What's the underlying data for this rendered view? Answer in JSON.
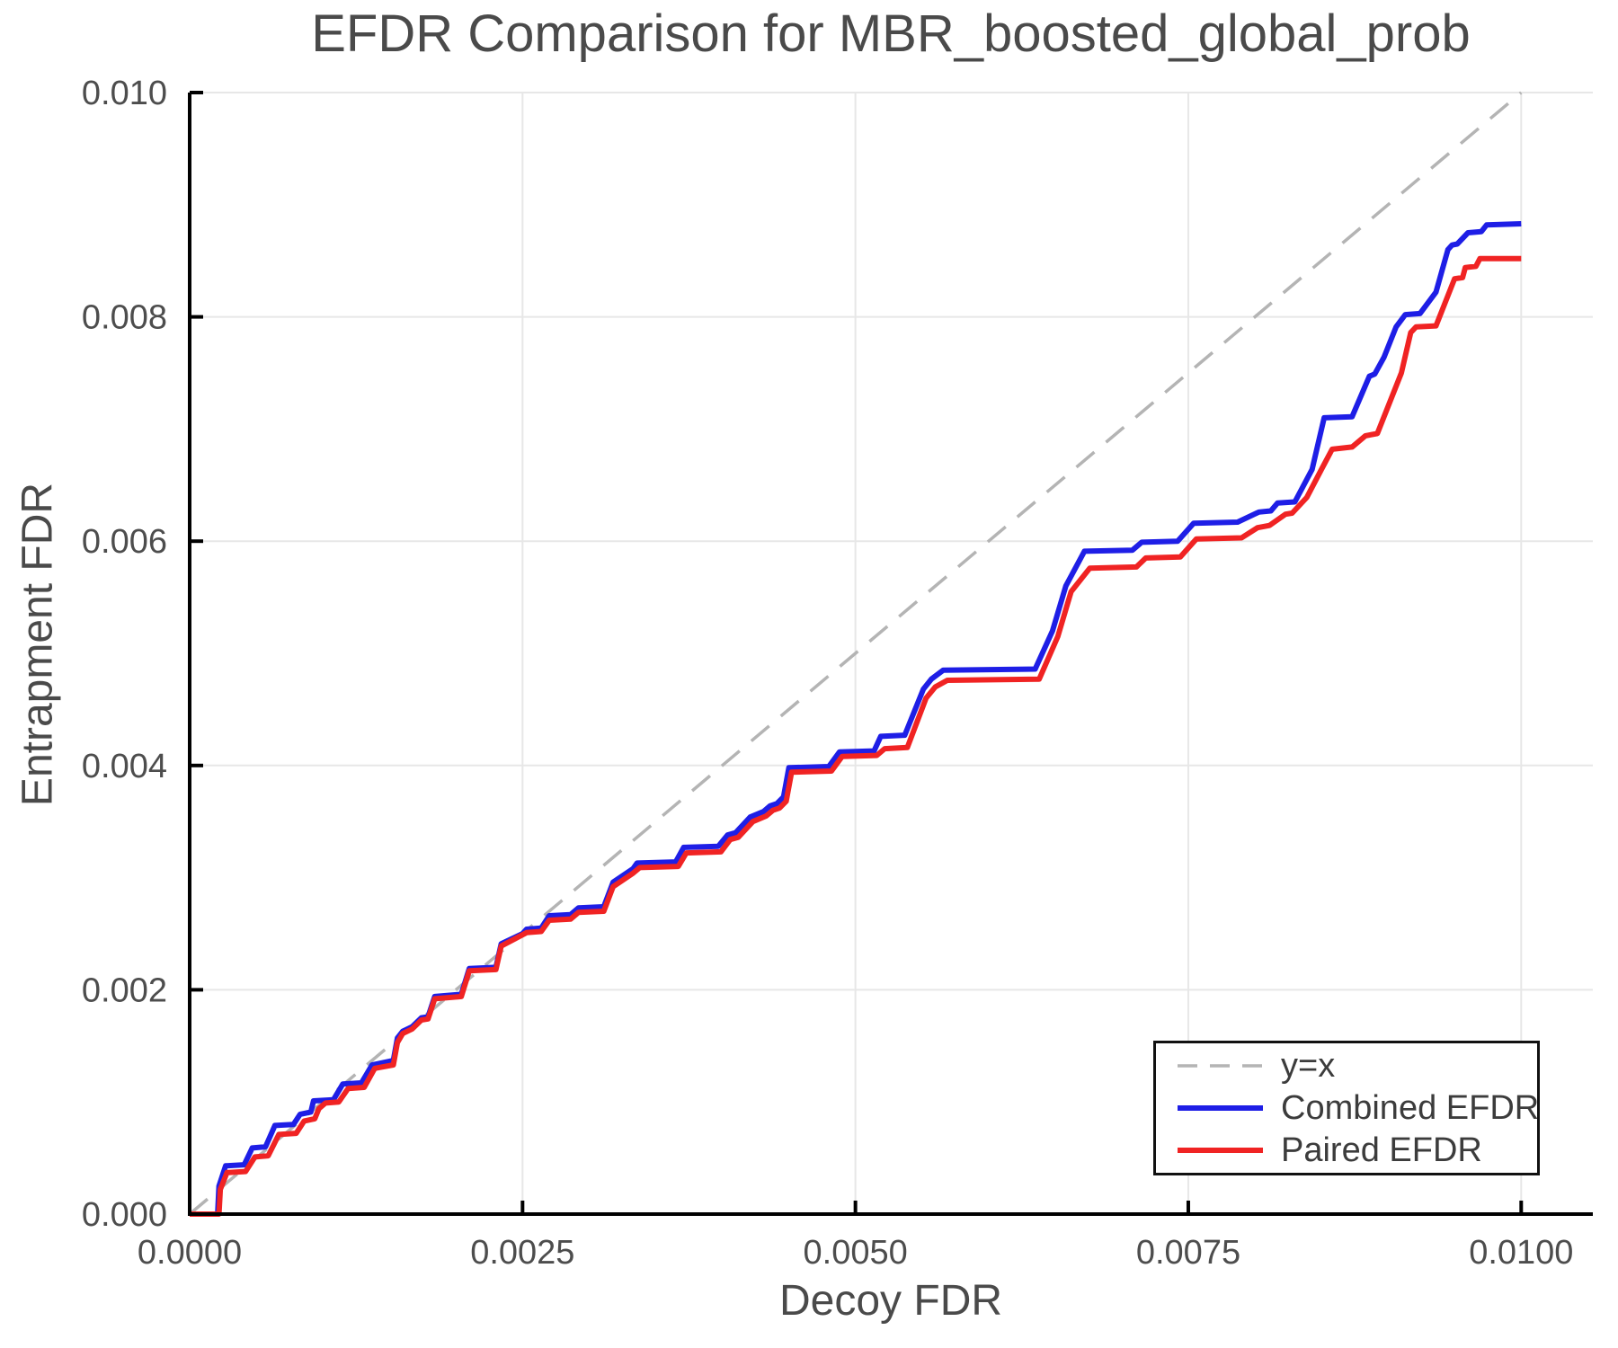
{
  "chart_data": {
    "type": "line",
    "title": "EFDR Comparison for MBR_boosted_global_prob",
    "xlabel": "Decoy FDR",
    "ylabel": "Entrapment FDR",
    "xlim": [
      0,
      0.010538
    ],
    "ylim": [
      0,
      0.01
    ],
    "grid": true,
    "legend_position": "lower right",
    "colors": {
      "diagonal": "#b4b4b4",
      "combined": "#1e1ee6",
      "paired": "#f02323",
      "gridline": "#e7e7e7",
      "axis": "#000000",
      "tick_label": "#4d4d4d",
      "text": "#4a4a4a"
    },
    "xticks": {
      "values": [
        0,
        0.0025,
        0.005,
        0.0075,
        0.01
      ],
      "labels": [
        "0.0000",
        "0.0025",
        "0.0050",
        "0.0075",
        "0.0100"
      ]
    },
    "yticks": {
      "values": [
        0,
        0.002,
        0.004,
        0.006,
        0.008,
        0.01
      ],
      "labels": [
        "0.000",
        "0.002",
        "0.004",
        "0.006",
        "0.008",
        "0.010"
      ]
    },
    "series": [
      {
        "name": "y=x",
        "style": "dashed",
        "color": "#b4b4b4",
        "width": 3.5,
        "points": [
          [
            0,
            0
          ],
          [
            0.01,
            0.01
          ]
        ]
      },
      {
        "name": "Combined EFDR",
        "style": "solid",
        "color": "#1e1ee6",
        "width": 6,
        "points": [
          [
            0,
            0
          ],
          [
            0.00021,
            0
          ],
          [
            0.00022,
            0.00025
          ],
          [
            0.00027,
            0.00043
          ],
          [
            0.00041,
            0.00044
          ],
          [
            0.00047,
            0.00059
          ],
          [
            0.00057,
            0.0006
          ],
          [
            0.00064,
            0.00079
          ],
          [
            0.00078,
            0.0008
          ],
          [
            0.00083,
            0.00089
          ],
          [
            0.00091,
            0.00091
          ],
          [
            0.00093,
            0.00101
          ],
          [
            0.00108,
            0.00102
          ],
          [
            0.00115,
            0.00116
          ],
          [
            0.00129,
            0.00117
          ],
          [
            0.00137,
            0.00133
          ],
          [
            0.00153,
            0.00137
          ],
          [
            0.00156,
            0.00157
          ],
          [
            0.0016,
            0.00163
          ],
          [
            0.00167,
            0.00167
          ],
          [
            0.00174,
            0.00175
          ],
          [
            0.00179,
            0.00176
          ],
          [
            0.00184,
            0.00194
          ],
          [
            0.00204,
            0.00196
          ],
          [
            0.0021,
            0.00219
          ],
          [
            0.0023,
            0.0022
          ],
          [
            0.00234,
            0.00241
          ],
          [
            0.0025,
            0.0025
          ],
          [
            0.00253,
            0.00254
          ],
          [
            0.00264,
            0.00255
          ],
          [
            0.0027,
            0.00266
          ],
          [
            0.00286,
            0.00267
          ],
          [
            0.00292,
            0.00273
          ],
          [
            0.00311,
            0.00274
          ],
          [
            0.00318,
            0.00296
          ],
          [
            0.00333,
            0.00308
          ],
          [
            0.00336,
            0.00313
          ],
          [
            0.00365,
            0.00314
          ],
          [
            0.00371,
            0.00327
          ],
          [
            0.00397,
            0.00328
          ],
          [
            0.00404,
            0.00338
          ],
          [
            0.0041,
            0.0034
          ],
          [
            0.00421,
            0.00354
          ],
          [
            0.00431,
            0.00359
          ],
          [
            0.00436,
            0.00364
          ],
          [
            0.00441,
            0.00366
          ],
          [
            0.00446,
            0.00372
          ],
          [
            0.0045,
            0.00398
          ],
          [
            0.0048,
            0.00399
          ],
          [
            0.00488,
            0.00412
          ],
          [
            0.00514,
            0.00413
          ],
          [
            0.00519,
            0.00426
          ],
          [
            0.00537,
            0.00427
          ],
          [
            0.00551,
            0.00468
          ],
          [
            0.00557,
            0.00477
          ],
          [
            0.00566,
            0.00485
          ],
          [
            0.00635,
            0.00486
          ],
          [
            0.00648,
            0.0052
          ],
          [
            0.00658,
            0.0056
          ],
          [
            0.00672,
            0.00591
          ],
          [
            0.00708,
            0.00592
          ],
          [
            0.00715,
            0.00599
          ],
          [
            0.00742,
            0.006
          ],
          [
            0.00754,
            0.00616
          ],
          [
            0.00787,
            0.00617
          ],
          [
            0.00803,
            0.00626
          ],
          [
            0.00812,
            0.00627
          ],
          [
            0.00817,
            0.00634
          ],
          [
            0.0083,
            0.00635
          ],
          [
            0.00843,
            0.00664
          ],
          [
            0.00852,
            0.0071
          ],
          [
            0.00873,
            0.00711
          ],
          [
            0.00886,
            0.00747
          ],
          [
            0.0089,
            0.00749
          ],
          [
            0.00897,
            0.00764
          ],
          [
            0.00906,
            0.00791
          ],
          [
            0.00913,
            0.00802
          ],
          [
            0.00924,
            0.00803
          ],
          [
            0.00936,
            0.00822
          ],
          [
            0.00945,
            0.0086
          ],
          [
            0.00948,
            0.00864
          ],
          [
            0.00952,
            0.00865
          ],
          [
            0.0096,
            0.00875
          ],
          [
            0.0097,
            0.00876
          ],
          [
            0.00974,
            0.00882
          ],
          [
            0.01,
            0.00883
          ]
        ]
      },
      {
        "name": "Paired EFDR",
        "style": "solid",
        "color": "#f02323",
        "width": 6,
        "points": [
          [
            0,
            0
          ],
          [
            0.00022,
            0
          ],
          [
            0.00023,
            0.00022
          ],
          [
            0.00028,
            0.00037
          ],
          [
            0.00042,
            0.00038
          ],
          [
            0.00049,
            0.00051
          ],
          [
            0.00059,
            0.00052
          ],
          [
            0.00067,
            0.00071
          ],
          [
            0.0008,
            0.00072
          ],
          [
            0.00086,
            0.00083
          ],
          [
            0.00094,
            0.00085
          ],
          [
            0.00097,
            0.00094
          ],
          [
            0.00102,
            0.00099
          ],
          [
            0.00112,
            0.001
          ],
          [
            0.00119,
            0.00112
          ],
          [
            0.00131,
            0.00113
          ],
          [
            0.00139,
            0.0013
          ],
          [
            0.00153,
            0.00133
          ],
          [
            0.00156,
            0.00153
          ],
          [
            0.0016,
            0.00161
          ],
          [
            0.00167,
            0.00165
          ],
          [
            0.00174,
            0.00173
          ],
          [
            0.00179,
            0.00174
          ],
          [
            0.00184,
            0.00192
          ],
          [
            0.00204,
            0.00194
          ],
          [
            0.0021,
            0.00217
          ],
          [
            0.0023,
            0.00218
          ],
          [
            0.00234,
            0.00239
          ],
          [
            0.0025,
            0.00249
          ],
          [
            0.00253,
            0.00251
          ],
          [
            0.00264,
            0.00252
          ],
          [
            0.0027,
            0.00262
          ],
          [
            0.00286,
            0.00263
          ],
          [
            0.00292,
            0.00269
          ],
          [
            0.00311,
            0.0027
          ],
          [
            0.00318,
            0.00292
          ],
          [
            0.00333,
            0.00304
          ],
          [
            0.00338,
            0.00309
          ],
          [
            0.00367,
            0.0031
          ],
          [
            0.00373,
            0.00322
          ],
          [
            0.00399,
            0.00323
          ],
          [
            0.00406,
            0.00334
          ],
          [
            0.00412,
            0.00336
          ],
          [
            0.00423,
            0.0035
          ],
          [
            0.00433,
            0.00355
          ],
          [
            0.00438,
            0.0036
          ],
          [
            0.00443,
            0.00362
          ],
          [
            0.00448,
            0.00368
          ],
          [
            0.00452,
            0.00394
          ],
          [
            0.00482,
            0.00395
          ],
          [
            0.0049,
            0.00408
          ],
          [
            0.00516,
            0.00409
          ],
          [
            0.00522,
            0.00415
          ],
          [
            0.00539,
            0.00416
          ],
          [
            0.00553,
            0.0046
          ],
          [
            0.0056,
            0.0047
          ],
          [
            0.00569,
            0.00476
          ],
          [
            0.00638,
            0.00477
          ],
          [
            0.00652,
            0.00515
          ],
          [
            0.00662,
            0.00555
          ],
          [
            0.00676,
            0.00576
          ],
          [
            0.00711,
            0.00577
          ],
          [
            0.00718,
            0.00585
          ],
          [
            0.00744,
            0.00586
          ],
          [
            0.00756,
            0.00602
          ],
          [
            0.0079,
            0.00603
          ],
          [
            0.00802,
            0.00612
          ],
          [
            0.00811,
            0.00614
          ],
          [
            0.00823,
            0.00624
          ],
          [
            0.00828,
            0.00625
          ],
          [
            0.00839,
            0.00639
          ],
          [
            0.0085,
            0.00664
          ],
          [
            0.00858,
            0.00682
          ],
          [
            0.00873,
            0.00684
          ],
          [
            0.00883,
            0.00694
          ],
          [
            0.00892,
            0.00696
          ],
          [
            0.0091,
            0.0075
          ],
          [
            0.00917,
            0.00786
          ],
          [
            0.00921,
            0.00791
          ],
          [
            0.00936,
            0.00792
          ],
          [
            0.0095,
            0.00834
          ],
          [
            0.00956,
            0.00835
          ],
          [
            0.00958,
            0.00844
          ],
          [
            0.00966,
            0.00845
          ],
          [
            0.00969,
            0.00852
          ],
          [
            0.01,
            0.00852
          ]
        ]
      }
    ]
  }
}
